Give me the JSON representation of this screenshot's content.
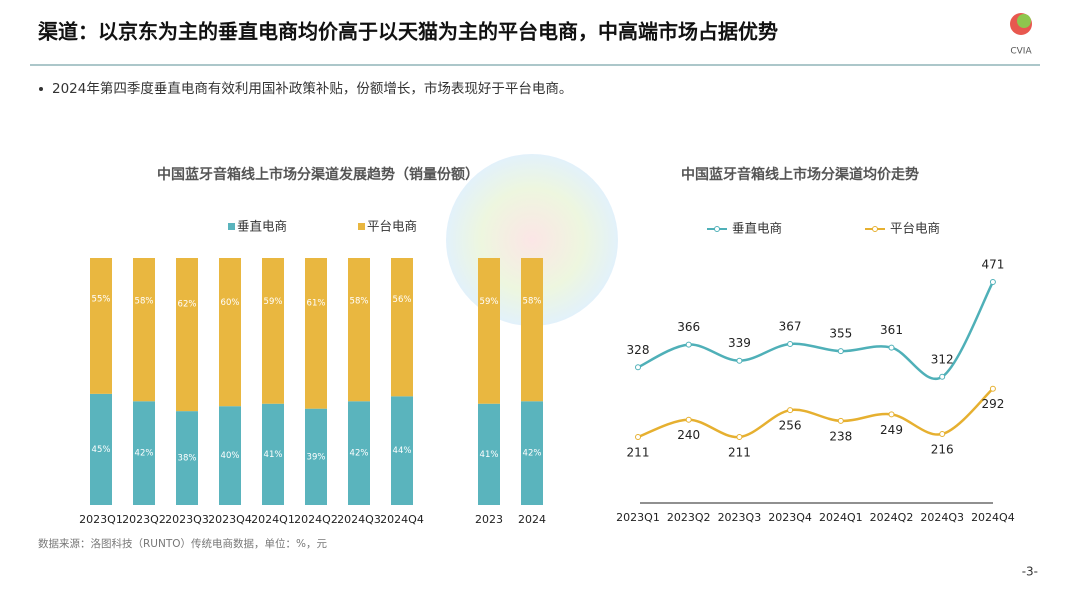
{
  "header": {
    "title": "渠道：以京东为主的垂直电商均价高于以天猫为主的平台电商，中高端市场占据优势",
    "bullet": "2024年第四季度垂直电商有效利用国补政策补贴，份额增长，市场表现好于平台电商。",
    "logo": "CVIA"
  },
  "source": "数据来源：洛图科技（RUNTO）传统电商数据，单位：%，元",
  "page_number": "-3-",
  "chart_data": [
    {
      "type": "stacked_bar",
      "title": "中国蓝牙音箱线上市场分渠道发展趋势（销量份额）",
      "categories": [
        "2023Q1",
        "2023Q2",
        "2023Q3",
        "2023Q4",
        "2024Q1",
        "2024Q2",
        "2024Q3",
        "2024Q4",
        "2023",
        "2024"
      ],
      "series": [
        {
          "name": "垂直电商",
          "color": "#5ab4bd",
          "values": [
            45,
            42,
            38,
            40,
            41,
            39,
            42,
            44,
            41,
            42
          ],
          "value_labels": [
            "45%",
            "42%",
            "38%",
            "40%",
            "41%",
            "39%",
            "42%",
            "44%",
            "41%",
            "42%"
          ]
        },
        {
          "name": "平台电商",
          "color": "#e9b740",
          "values": [
            55,
            58,
            62,
            60,
            59,
            61,
            58,
            56,
            59,
            58
          ],
          "value_labels": [
            "55%",
            "58%",
            "62%",
            "60%",
            "59%",
            "61%",
            "58%",
            "56%",
            "59%",
            "58%"
          ]
        }
      ]
    },
    {
      "type": "line",
      "title": "中国蓝牙音箱线上市场分渠道均价走势",
      "categories": [
        "2023Q1",
        "2023Q2",
        "2023Q3",
        "2023Q4",
        "2024Q1",
        "2024Q2",
        "2024Q3",
        "2024Q4"
      ],
      "series": [
        {
          "name": "垂直电商",
          "color": "#4fb0b8",
          "values": [
            328,
            366,
            339,
            367,
            355,
            361,
            312,
            471
          ]
        },
        {
          "name": "平台电商",
          "color": "#e6b030",
          "values": [
            211,
            240,
            211,
            256,
            238,
            249,
            216,
            292
          ]
        }
      ]
    }
  ]
}
